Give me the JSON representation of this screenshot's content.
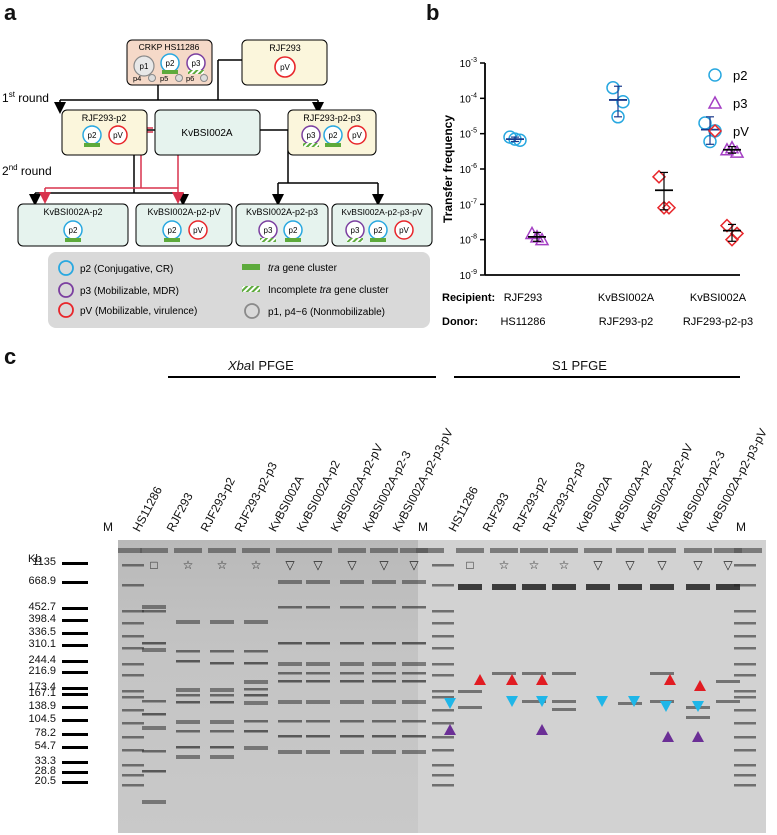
{
  "panel_a": {
    "letter": "a",
    "round1": "1st round",
    "round1_main": "1",
    "round1_sup": "st",
    "round1_rest": " round",
    "round2_main": "2",
    "round2_sup": "nd",
    "round2_rest": " round",
    "donor_box": "CRKP HS11286",
    "rjf293": "RJF293",
    "rjf293_p2": "RJF293-p2",
    "rjf293_p2_p3": "RJF293-p2-p3",
    "kvbsi002a": "KvBSI002A",
    "kv_p2": "KvBSI002A-p2",
    "kv_p2_pv": "KvBSI002A-p2-pV",
    "kv_p2_p3": "KvBSI002A-p2-p3",
    "kv_p2_p3_pv": "KvBSI002A-p2-p3-pV",
    "plasmids": {
      "p1": "p1",
      "p2": "p2",
      "p3": "p3",
      "p4": "p4",
      "p5": "p5",
      "p6": "p6",
      "pV": "pV"
    },
    "legend": {
      "p2": "p2 (Conjugative, CR)",
      "p3": "p3 (Mobilizable, MDR)",
      "pV": "pV (Mobilizable, virulence)",
      "tra_italic": "tra",
      "tra": " gene cluster",
      "incomplete_prefix": "Incomplete ",
      "incomplete_italic": "tra",
      "incomplete_suffix": " gene cluster",
      "nonmob": "p1, p4~6 (Nonmobilizable)"
    },
    "colors": {
      "p2": "#29a8e0",
      "p3": "#7b3fa0",
      "pV": "#e8262b",
      "p1": "#8a8a8a",
      "tra": "#5daa3c",
      "arrow_red": "#d9334d",
      "box_top": "#f5d9c8",
      "box_green": "#e6f3ee",
      "box_yellow": "#fbf6dc",
      "legend_bg": "#d9d9d9"
    }
  },
  "panel_b": {
    "letter": "b"
  },
  "chart_data": {
    "type": "scatter",
    "ylabel": "Transfer frequency",
    "yscale": "log",
    "ylim": [
      1e-09,
      0.001
    ],
    "yticks": [
      {
        "value": 0.001,
        "label": "10",
        "exp": "-3"
      },
      {
        "value": 0.0001,
        "label": "10",
        "exp": "-4"
      },
      {
        "value": 1e-05,
        "label": "10",
        "exp": "-5"
      },
      {
        "value": 1e-06,
        "label": "10",
        "exp": "-6"
      },
      {
        "value": 1e-07,
        "label": "10",
        "exp": "-7"
      },
      {
        "value": 1e-08,
        "label": "10",
        "exp": "-8"
      },
      {
        "value": 1e-09,
        "label": "10",
        "exp": "-9"
      }
    ],
    "row_labels": {
      "recipient": "Recipient:",
      "donor": "Donor:"
    },
    "groups": [
      {
        "recipient": "RJF293",
        "donor": "HS11286"
      },
      {
        "recipient": "KvBSI002A",
        "donor": "RJF293-p2"
      },
      {
        "recipient": "KvBSI002A",
        "donor": "RJF293-p2-p3"
      }
    ],
    "series": [
      {
        "name": "p2",
        "marker": "circle",
        "color": "#29a8e0",
        "points": [
          [
            0,
            8e-06
          ],
          [
            0,
            6.5e-06
          ],
          [
            0,
            7e-06
          ],
          [
            1,
            0.0002
          ],
          [
            1,
            8e-05
          ],
          [
            1,
            3e-05
          ],
          [
            2,
            2e-05
          ],
          [
            2,
            1.2e-05
          ],
          [
            2,
            6e-06
          ]
        ],
        "mean": [
          7e-06,
          9e-05,
          1.3e-05
        ],
        "err_low": [
          6e-06,
          3e-05,
          5e-06
        ],
        "err_high": [
          8e-06,
          0.00022,
          3e-05
        ]
      },
      {
        "name": "p3",
        "marker": "triangle",
        "color": "#a43fc4",
        "points": [
          [
            0,
            1.5e-08
          ],
          [
            0,
            1e-08
          ],
          [
            0,
            1.2e-08
          ],
          [
            2,
            3.5e-06
          ],
          [
            2,
            3e-06
          ],
          [
            2,
            4e-06
          ]
        ],
        "mean": [
          1.2e-08,
          null,
          3.5e-06
        ],
        "err_low": [
          9e-09,
          null,
          2.8e-06
        ],
        "err_high": [
          1.6e-08,
          null,
          4.3e-06
        ]
      },
      {
        "name": "pV",
        "marker": "diamond",
        "color": "#e8262b",
        "points": [
          [
            1,
            6e-07
          ],
          [
            1,
            8e-08
          ],
          [
            1,
            8e-08
          ],
          [
            2,
            2.5e-08
          ],
          [
            2,
            1.5e-08
          ],
          [
            2,
            1e-08
          ]
        ],
        "mean": [
          null,
          2.5e-07,
          1.8e-08
        ],
        "err_low": [
          null,
          7e-08,
          9e-09
        ],
        "err_high": [
          null,
          8e-07,
          2.7e-08
        ]
      }
    ]
  },
  "panel_c": {
    "letter": "c",
    "xbai_italic": "Xba",
    "xbai_rest": "I PFGE",
    "s1": "S1 PFGE",
    "kb": "Kb",
    "marker": "M",
    "lanes_left": [
      "HS11286",
      "RJF293",
      "RJF293-p2",
      "RJF293-p2-p3",
      "KvBSI002A",
      "KvBSI002A-p2",
      "KvBSI002A-p2-pV",
      "KvBSI002A-p2-3",
      "KvBSI002A-p2-p3-pV"
    ],
    "lanes_right": [
      "HS11286",
      "RJF293",
      "RJF293-p2",
      "RJF293-p2-p3",
      "KvBSI002A",
      "KvBSI002A-p2",
      "KvBSI002A-p2-pV",
      "KvBSI002A-p2-3",
      "KvBSI002A-p2-p3-pV"
    ],
    "well_symbols": [
      "□",
      "☆",
      "☆",
      "☆",
      "▽",
      "▽",
      "▽",
      "▽",
      "▽"
    ],
    "kb_ladder": [
      "1135",
      "668.9",
      "452.7",
      "398.4",
      "336.5",
      "310.1",
      "244.4",
      "216.9",
      "173.4",
      "167.1",
      "138.9",
      "104.5",
      "78.2",
      "54.7",
      "33.3",
      "28.8",
      "20.5"
    ]
  }
}
